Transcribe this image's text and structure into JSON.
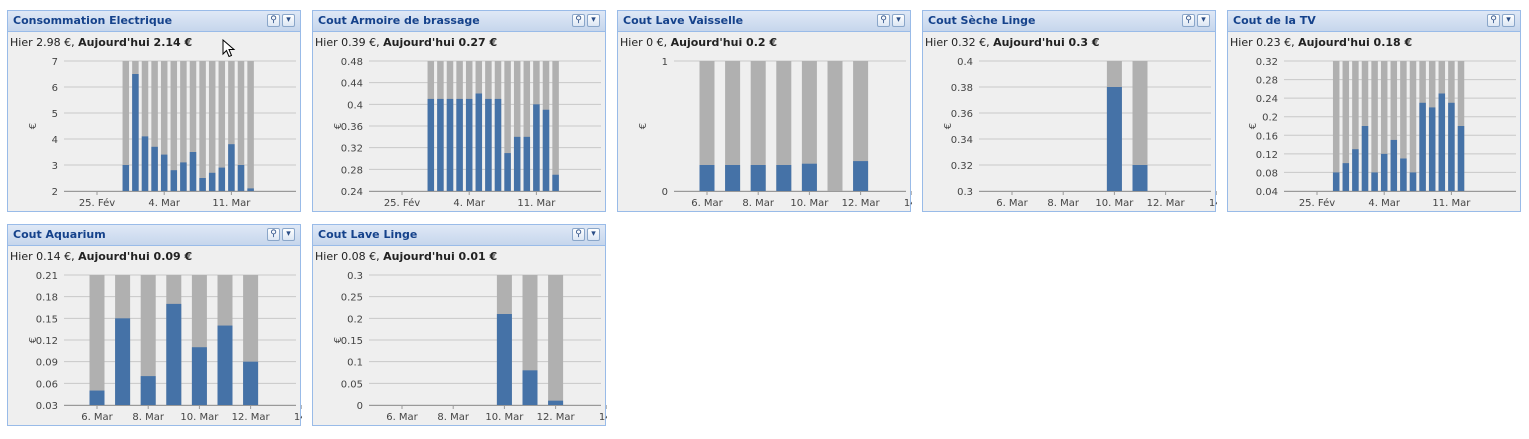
{
  "colors": {
    "bar": "#4572a7",
    "background_bar": "#b0b0b0",
    "grid": "#c8c8c8",
    "title": "#15428b"
  },
  "panels": [
    {
      "id": "consommation",
      "title": "Consommation Electrique",
      "hier": "Hier 2.98 €,",
      "today": "Aujourd'hui 2.14 €",
      "x_ticks": [
        {
          "i": 0,
          "label": "25. Fév"
        },
        {
          "i": 7,
          "label": "4. Mar"
        },
        {
          "i": 14,
          "label": "11. Mar"
        }
      ],
      "chart_data": {
        "type": "bar",
        "ylabel": "€",
        "ylim": [
          2,
          7
        ],
        "yticks": [
          2,
          3,
          4,
          5,
          6,
          7
        ],
        "values": [
          null,
          null,
          null,
          3.0,
          6.5,
          4.1,
          3.7,
          3.4,
          2.8,
          3.1,
          3.5,
          2.5,
          2.7,
          2.9,
          3.8,
          3.0,
          2.1
        ]
      }
    },
    {
      "id": "armoire",
      "title": "Cout Armoire de brassage",
      "hier": "Hier 0.39 €,",
      "today": "Aujourd'hui 0.27 €",
      "x_ticks": [
        {
          "i": 0,
          "label": "25. Fév"
        },
        {
          "i": 7,
          "label": "4. Mar"
        },
        {
          "i": 14,
          "label": "11. Mar"
        }
      ],
      "chart_data": {
        "type": "bar",
        "ylabel": "€",
        "ylim": [
          0.24,
          0.48
        ],
        "yticks": [
          "0.24",
          "0.28",
          "0.32",
          "0.36",
          "0.4",
          "0.44",
          "0.48"
        ],
        "values": [
          null,
          null,
          null,
          0.41,
          0.41,
          0.41,
          0.41,
          0.41,
          0.42,
          0.41,
          0.41,
          0.31,
          0.34,
          0.34,
          0.4,
          0.39,
          0.27
        ]
      }
    },
    {
      "id": "vaisselle",
      "title": "Cout Lave Vaisselle",
      "hier": "Hier 0 €,",
      "today": "Aujourd'hui 0.2 €",
      "x_ticks": [
        {
          "i": 0,
          "label": "6. Mar"
        },
        {
          "i": 2,
          "label": "8. Mar"
        },
        {
          "i": 4,
          "label": "10. Mar"
        },
        {
          "i": 6,
          "label": "12. Mar"
        },
        {
          "i": 8,
          "label": "14."
        }
      ],
      "chart_data": {
        "type": "bar",
        "ylabel": "€",
        "ylim": [
          0,
          1
        ],
        "yticks": [
          "0",
          "1"
        ],
        "values": [
          0.2,
          0.2,
          0.2,
          0.2,
          0.21,
          0,
          0.23
        ]
      }
    },
    {
      "id": "seche",
      "title": "Cout Sèche Linge",
      "hier": "Hier 0.32 €,",
      "today": "Aujourd'hui 0.3 €",
      "x_ticks": [
        {
          "i": 0,
          "label": "6. Mar"
        },
        {
          "i": 2,
          "label": "8. Mar"
        },
        {
          "i": 4,
          "label": "10. Mar"
        },
        {
          "i": 6,
          "label": "12. Mar"
        },
        {
          "i": 8,
          "label": "14."
        }
      ],
      "chart_data": {
        "type": "bar",
        "ylabel": "€",
        "ylim": [
          0.3,
          0.4
        ],
        "yticks": [
          "0.3",
          "0.32",
          "0.34",
          "0.36",
          "0.38",
          "0.4"
        ],
        "values": [
          null,
          null,
          null,
          null,
          0.38,
          0.32,
          null
        ]
      }
    },
    {
      "id": "tv",
      "title": "Cout de la TV",
      "hier": "Hier 0.23 €,",
      "today": "Aujourd'hui 0.18 €",
      "x_ticks": [
        {
          "i": 0,
          "label": "25. Fév"
        },
        {
          "i": 7,
          "label": "4. Mar"
        },
        {
          "i": 14,
          "label": "11. Mar"
        }
      ],
      "chart_data": {
        "type": "bar",
        "ylabel": "€",
        "ylim": [
          0.04,
          0.32
        ],
        "yticks": [
          "0.04",
          "0.08",
          "0.12",
          "0.16",
          "0.2",
          "0.24",
          "0.28",
          "0.32"
        ],
        "values": [
          null,
          null,
          0.08,
          0.1,
          0.13,
          0.18,
          0.08,
          0.12,
          0.15,
          0.11,
          0.08,
          0.23,
          0.22,
          0.25,
          0.23,
          0.18
        ]
      }
    },
    {
      "id": "aquarium",
      "title": "Cout Aquarium",
      "hier": "Hier 0.14 €,",
      "today": "Aujourd'hui 0.09 €",
      "x_ticks": [
        {
          "i": 0,
          "label": "6. Mar"
        },
        {
          "i": 2,
          "label": "8. Mar"
        },
        {
          "i": 4,
          "label": "10. Mar"
        },
        {
          "i": 6,
          "label": "12. Mar"
        },
        {
          "i": 8,
          "label": "14."
        }
      ],
      "chart_data": {
        "type": "bar",
        "ylabel": "€",
        "ylim": [
          0.03,
          0.21
        ],
        "yticks": [
          "0.03",
          "0.06",
          "0.09",
          "0.12",
          "0.15",
          "0.18",
          "0.21"
        ],
        "values": [
          0.05,
          0.15,
          0.07,
          0.17,
          0.11,
          0.14,
          0.09
        ]
      }
    },
    {
      "id": "linge",
      "title": "Cout Lave Linge",
      "hier": "Hier 0.08 €,",
      "today": "Aujourd'hui 0.01 €",
      "x_ticks": [
        {
          "i": 0,
          "label": "6. Mar"
        },
        {
          "i": 2,
          "label": "8. Mar"
        },
        {
          "i": 4,
          "label": "10. Mar"
        },
        {
          "i": 6,
          "label": "12. Mar"
        },
        {
          "i": 8,
          "label": "14."
        }
      ],
      "chart_data": {
        "type": "bar",
        "ylabel": "€",
        "ylim": [
          0,
          0.3
        ],
        "yticks": [
          "0",
          "0.05",
          "0.1",
          "0.15",
          "0.2",
          "0.25",
          "0.3"
        ],
        "values": [
          null,
          null,
          null,
          null,
          0.21,
          0.08,
          0.01
        ]
      }
    }
  ]
}
